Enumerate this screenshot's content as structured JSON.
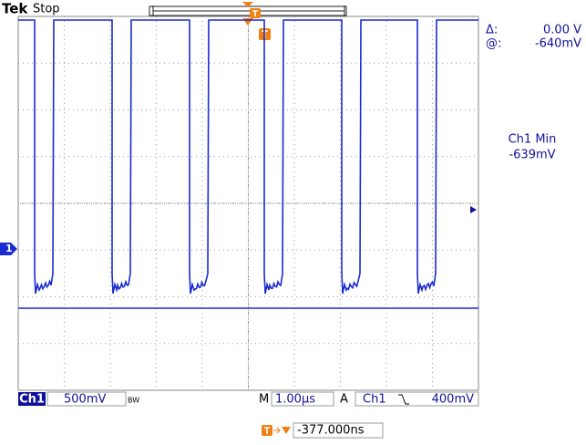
{
  "header": {
    "brand": "Tek",
    "status": "Stop"
  },
  "readout": {
    "delta_label": "Δ:",
    "delta_value": "0.00 V",
    "at_label": "@:",
    "at_value": "-640mV"
  },
  "measurement": {
    "name": "Ch1 Min",
    "value": "-639mV"
  },
  "channel_marker": "1",
  "bottom_bar": {
    "channel": "Ch1",
    "scale": "500mV",
    "bw": "BW",
    "time_label": "M",
    "time_scale": "1.00µs",
    "trigger_label": "A",
    "trigger_source": "Ch1",
    "trigger_level": "400mV"
  },
  "trigger_position": "-377.000ns"
}
